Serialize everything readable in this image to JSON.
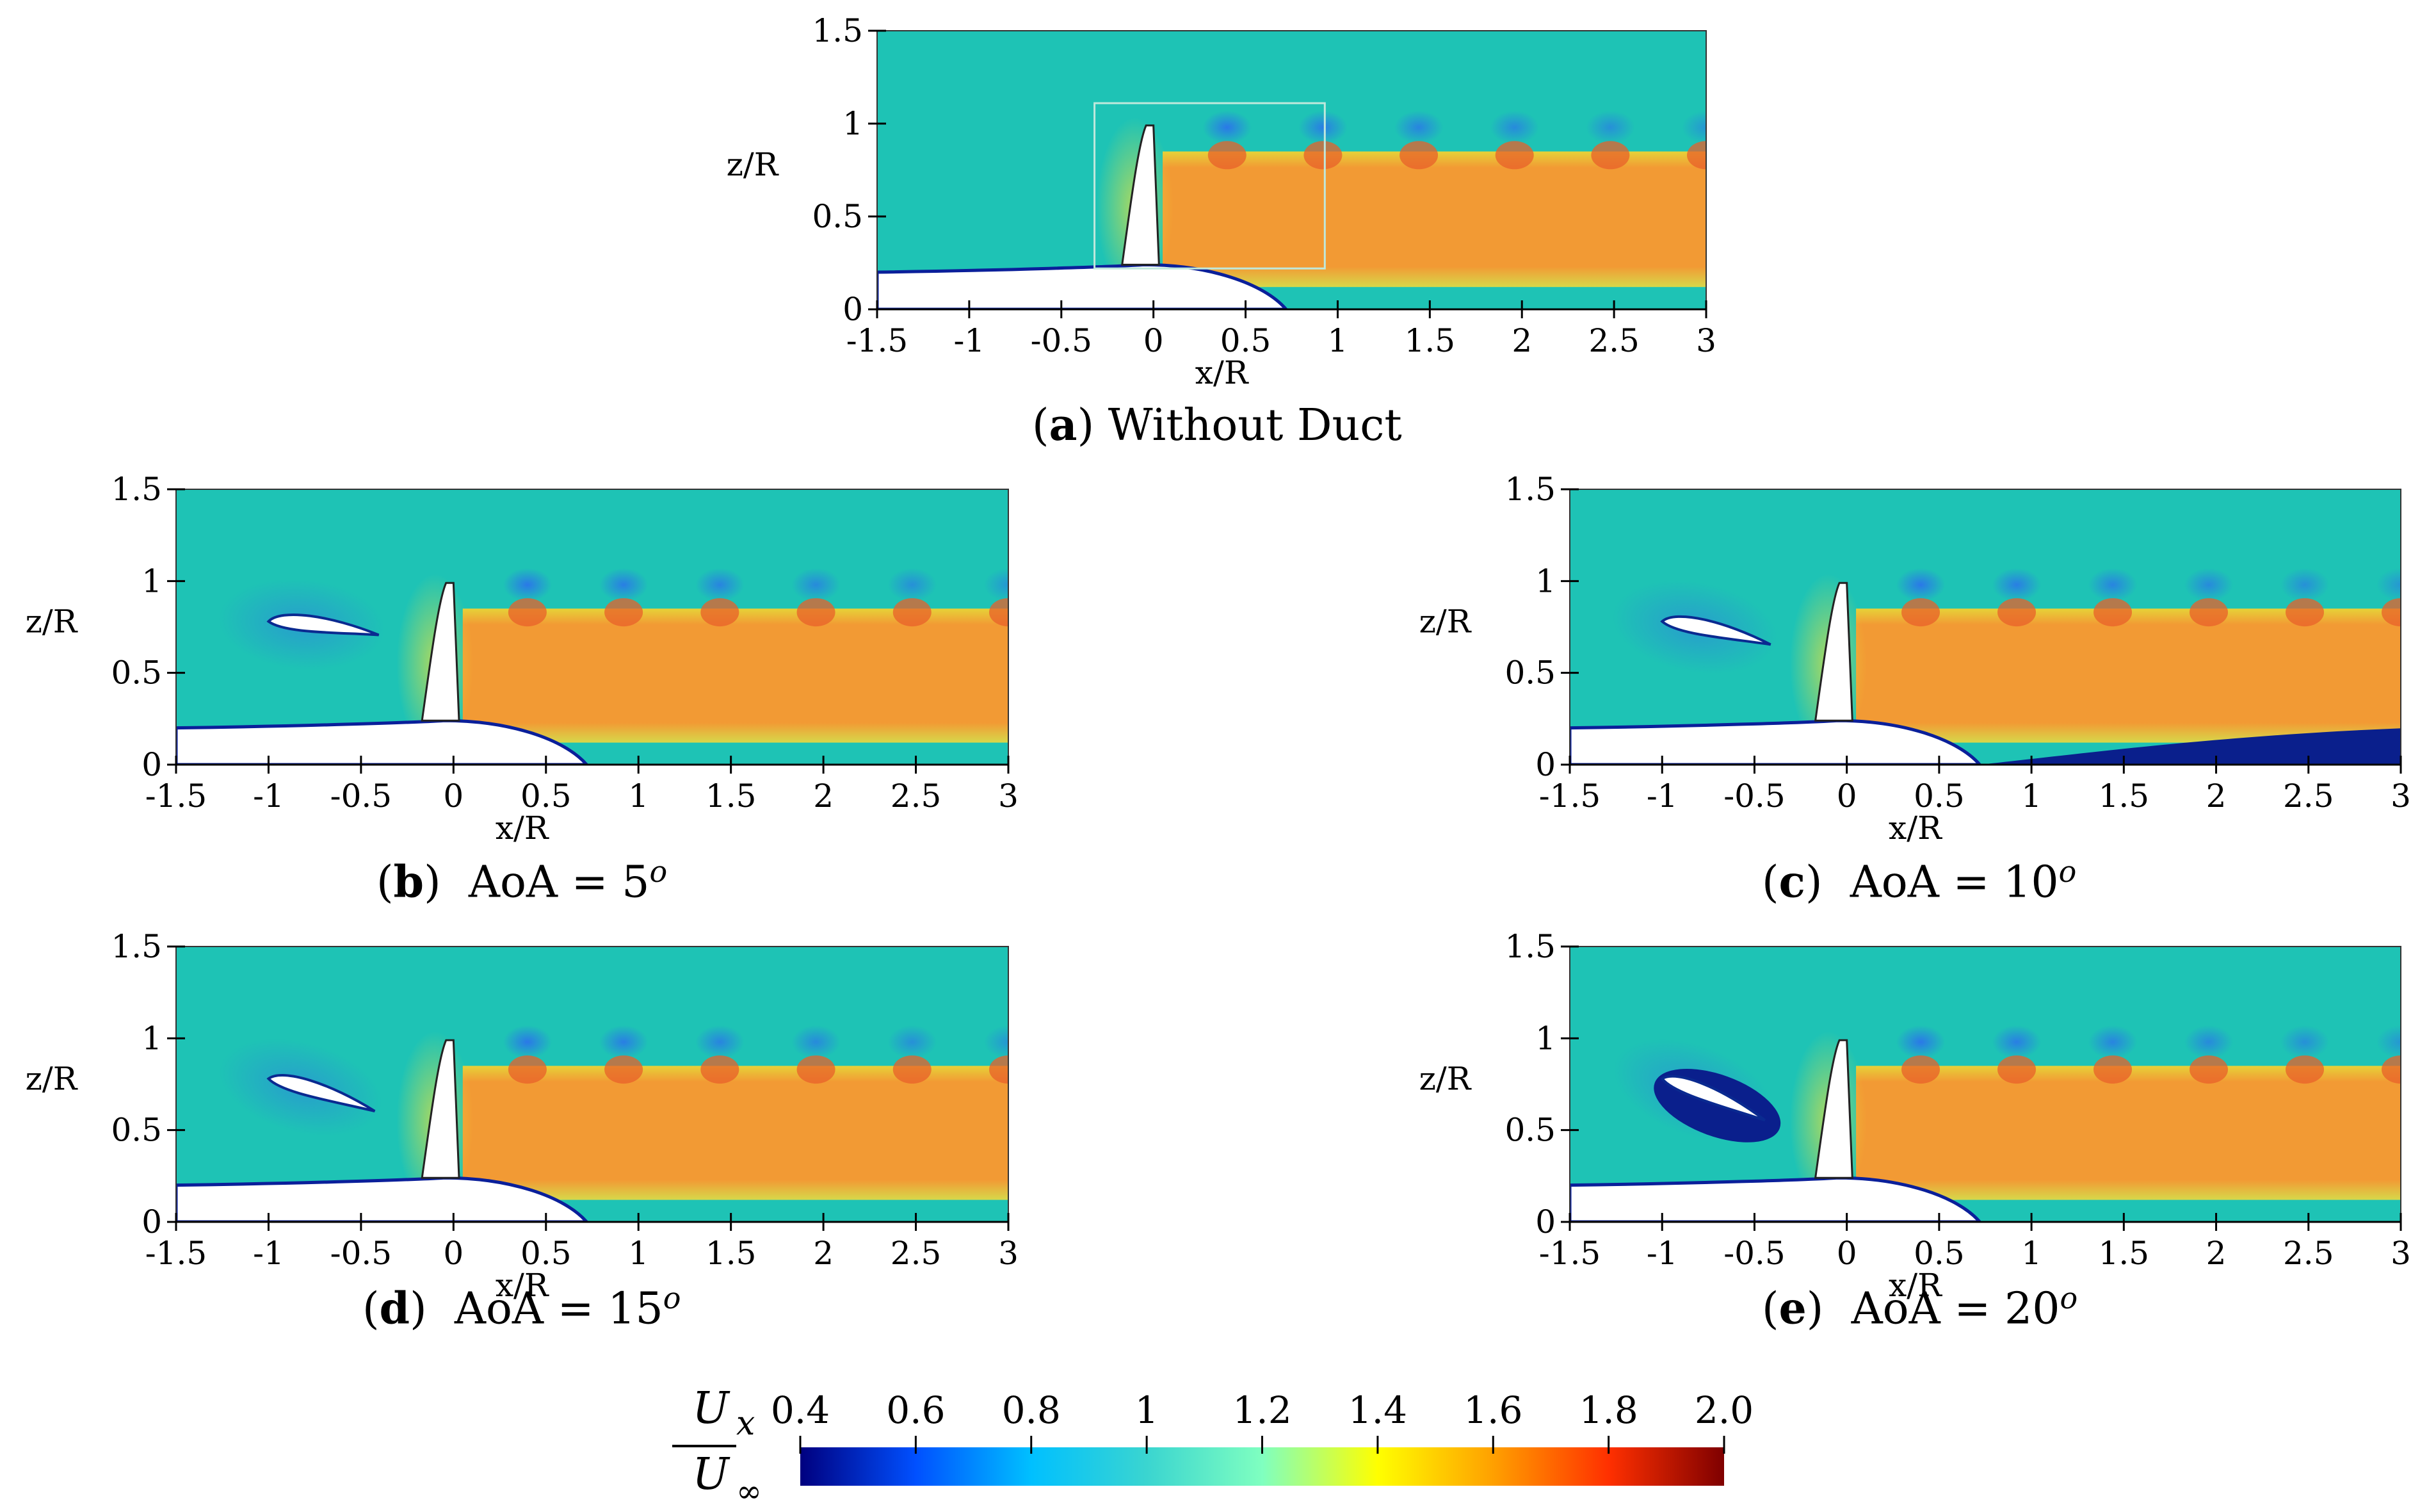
{
  "figure": {
    "panels": [
      {
        "id": "a",
        "letter": "a",
        "caption_text": "Without Duct",
        "caption_var": "",
        "caption_eq": "",
        "caption_value": "",
        "caption_sup": "",
        "airfoil_aoa_deg": null
      },
      {
        "id": "b",
        "letter": "b",
        "caption_text": "",
        "caption_var": "AoA",
        "caption_eq": "=",
        "caption_value": "5",
        "caption_sup": "o",
        "airfoil_aoa_deg": 5
      },
      {
        "id": "c",
        "letter": "c",
        "caption_text": "",
        "caption_var": "AoA",
        "caption_eq": "=",
        "caption_value": "10",
        "caption_sup": "o",
        "airfoil_aoa_deg": 10
      },
      {
        "id": "d",
        "letter": "d",
        "caption_text": "",
        "caption_var": "AoA",
        "caption_eq": "=",
        "caption_value": "15",
        "caption_sup": "o",
        "airfoil_aoa_deg": 15
      },
      {
        "id": "e",
        "letter": "e",
        "caption_text": "",
        "caption_var": "AoA",
        "caption_eq": "=",
        "caption_value": "20",
        "caption_sup": "o",
        "airfoil_aoa_deg": 20
      }
    ],
    "axes": {
      "xlabel": "x/R",
      "ylabel": "z/R",
      "xlim": [
        -1.5,
        3
      ],
      "ylim": [
        0,
        1.5
      ],
      "xticks": [
        "-1.5",
        "-1",
        "-0.5",
        "0",
        "0.5",
        "1",
        "1.5",
        "2",
        "2.5",
        "3"
      ],
      "yticks": [
        "0",
        "0.5",
        "1",
        "1.5"
      ]
    },
    "colorbar": {
      "label_num": "U",
      "label_num_sub": "x",
      "label_den": "U",
      "label_den_sub": "∞",
      "min": 0.4,
      "max": 2.0,
      "ticks": [
        "0.4",
        "0.6",
        "0.8",
        "1",
        "1.2",
        "1.4",
        "1.6",
        "1.8",
        "2.0"
      ],
      "stops": [
        {
          "v": 0.4,
          "color": "#00007f"
        },
        {
          "v": 0.6,
          "color": "#0050ff"
        },
        {
          "v": 0.8,
          "color": "#00c0ff"
        },
        {
          "v": 1.0,
          "color": "#3ad5d0"
        },
        {
          "v": 1.2,
          "color": "#7fffc0"
        },
        {
          "v": 1.4,
          "color": "#ffff00"
        },
        {
          "v": 1.6,
          "color": "#ffa000"
        },
        {
          "v": 1.8,
          "color": "#ff3000"
        },
        {
          "v": 2.0,
          "color": "#7f0000"
        }
      ]
    },
    "field_colors": {
      "freestream": "#1ec3b5",
      "wake": "#f29a34",
      "wake_edge": "#e6d238",
      "vortex": "#2a78e8",
      "hub_edge": "#0a1f9a",
      "inflow": "#66d08c",
      "stagnation": "#e8e23c",
      "separated": "#0a1f8c"
    }
  }
}
